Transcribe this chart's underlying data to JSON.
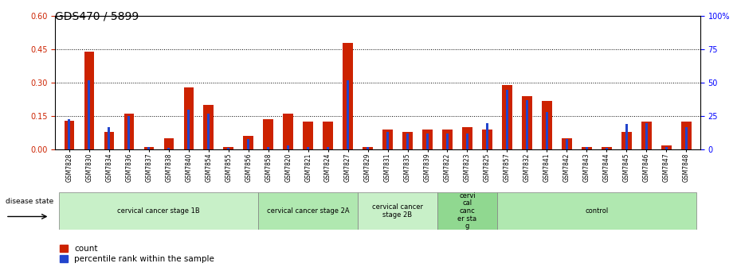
{
  "title": "GDS470 / 5899",
  "samples": [
    "GSM7828",
    "GSM7830",
    "GSM7834",
    "GSM7836",
    "GSM7837",
    "GSM7838",
    "GSM7840",
    "GSM7854",
    "GSM7855",
    "GSM7856",
    "GSM7858",
    "GSM7820",
    "GSM7821",
    "GSM7824",
    "GSM7827",
    "GSM7829",
    "GSM7831",
    "GSM7835",
    "GSM7839",
    "GSM7822",
    "GSM7823",
    "GSM7825",
    "GSM7857",
    "GSM7832",
    "GSM7841",
    "GSM7842",
    "GSM7843",
    "GSM7844",
    "GSM7845",
    "GSM7846",
    "GSM7847",
    "GSM7848"
  ],
  "count": [
    0.13,
    0.44,
    0.08,
    0.16,
    0.01,
    0.05,
    0.28,
    0.2,
    0.01,
    0.06,
    0.135,
    0.16,
    0.125,
    0.125,
    0.48,
    0.01,
    0.09,
    0.08,
    0.09,
    0.09,
    0.1,
    0.09,
    0.29,
    0.24,
    0.22,
    0.05,
    0.01,
    0.01,
    0.08,
    0.125,
    0.02,
    0.125
  ],
  "percentile": [
    23,
    52,
    17,
    25,
    2,
    1,
    30,
    27,
    1,
    8,
    2,
    3,
    2,
    2,
    52,
    2,
    13,
    12,
    12,
    12,
    12,
    20,
    45,
    37,
    28,
    8,
    2,
    1,
    19,
    20,
    2,
    17
  ],
  "groups": [
    {
      "label": "cervical cancer stage 1B",
      "start": 0,
      "end": 10,
      "color": "#c8f0c8"
    },
    {
      "label": "cervical cancer stage 2A",
      "start": 10,
      "end": 15,
      "color": "#b0e8b0"
    },
    {
      "label": "cervical cancer\nstage 2B",
      "start": 15,
      "end": 19,
      "color": "#c8f0c8"
    },
    {
      "label": "cervi\ncal\ncanc\ner sta\ng",
      "start": 19,
      "end": 22,
      "color": "#90d890"
    },
    {
      "label": "control",
      "start": 22,
      "end": 32,
      "color": "#b0e8b0"
    }
  ],
  "ylim_left": [
    0,
    0.6
  ],
  "ylim_right": [
    0,
    100
  ],
  "yticks_left": [
    0,
    0.15,
    0.3,
    0.45,
    0.6
  ],
  "yticks_right": [
    0,
    25,
    50,
    75,
    100
  ],
  "bar_color_count": "#cc2200",
  "bar_color_pct": "#2244cc",
  "title_fontsize": 10,
  "tick_fontsize": 7,
  "label_fontsize": 7
}
